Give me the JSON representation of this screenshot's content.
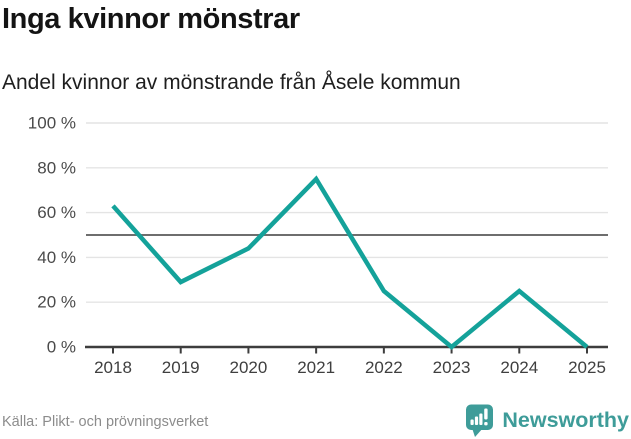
{
  "header": {
    "title": "Inga kvinnor mönstrar",
    "subtitle": "Andel kvinnor av mönstrande från Åsele kommun"
  },
  "chart_data": {
    "type": "line",
    "x": [
      2018,
      2019,
      2020,
      2021,
      2022,
      2023,
      2024,
      2025
    ],
    "series": [
      {
        "name": "Andel kvinnor av mönstrande",
        "values": [
          63,
          29,
          44,
          75,
          25,
          0,
          25,
          0
        ]
      }
    ],
    "title": "Inga kvinnor mönstrar",
    "subtitle": "Andel kvinnor av mönstrande från Åsele kommun",
    "xlabel": "",
    "ylabel": "",
    "ylim": [
      0,
      100
    ],
    "yticks": [
      0,
      20,
      40,
      60,
      80,
      100
    ],
    "ytick_suffix": " %",
    "reference_line": 50,
    "grid": true,
    "legend": false,
    "colors": {
      "line": "#14a29a",
      "grid": "#e4e4e4",
      "reference": "#6e6e6e",
      "axis": "#3d3d3d",
      "ytick_label": "#4a4a4a",
      "xtick_label": "#3f3f3f"
    }
  },
  "footer": {
    "source": "Källa: Plikt- och prövningsverket",
    "brand": "Newsworthy",
    "brand_color": "#3e9c99"
  }
}
